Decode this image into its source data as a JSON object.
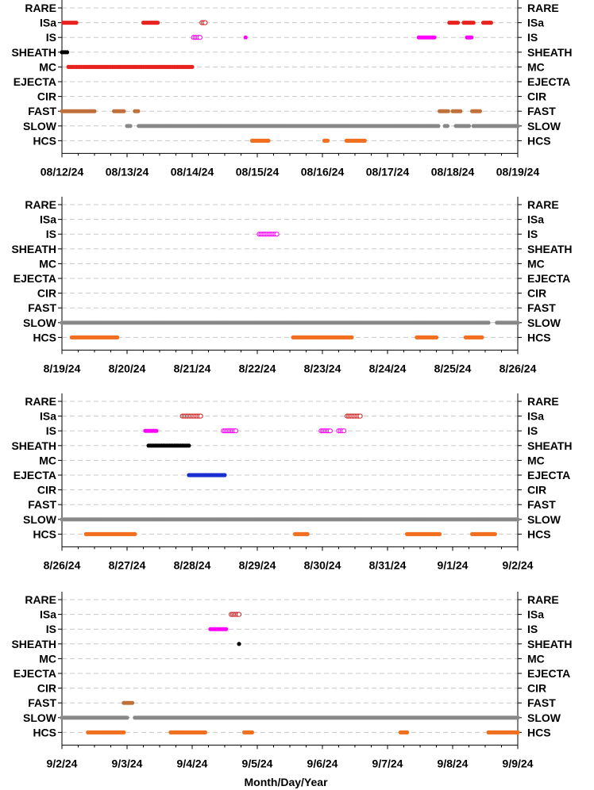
{
  "x_axis_title": "Month/Day/Year",
  "chart_data": [
    {
      "type": "scatter",
      "categories": [
        "RARE",
        "ISa",
        "IS",
        "SHEATH",
        "MC",
        "EJECTA",
        "CIR",
        "FAST",
        "SLOW",
        "HCS"
      ],
      "xlim": [
        "08/12/24",
        "08/19/24"
      ],
      "tick_labels": [
        "08/12/24",
        "08/13/24",
        "08/14/24",
        "08/15/24",
        "08/16/24",
        "08/17/24",
        "08/18/24",
        "08/19/24"
      ],
      "grid": true,
      "series": [
        {
          "category": "ISa",
          "style": "filled",
          "color": "#e8231f",
          "intervals": [
            [
              0.02,
              0.22
            ],
            [
              1.25,
              1.47
            ],
            [
              5.95,
              6.08
            ],
            [
              6.17,
              6.32
            ],
            [
              6.47,
              6.59
            ]
          ]
        },
        {
          "category": "ISa",
          "style": "open",
          "color": "#cc1f1f",
          "intervals": [
            [
              2.15,
              2.2
            ]
          ]
        },
        {
          "category": "IS",
          "style": "open",
          "color": "#ff00ff",
          "intervals": [
            [
              2.02,
              2.12
            ]
          ]
        },
        {
          "category": "IS",
          "style": "filled",
          "color": "#ff00ff",
          "intervals": [
            [
              2.82,
              2.82
            ],
            [
              5.48,
              5.72
            ],
            [
              6.22,
              6.29
            ]
          ]
        },
        {
          "category": "SHEATH",
          "style": "filled",
          "color": "#000000",
          "intervals": [
            [
              0.0,
              0.08
            ]
          ]
        },
        {
          "category": "MC",
          "style": "filled",
          "color": "#e8231f",
          "intervals": [
            [
              0.1,
              2.0
            ]
          ]
        },
        {
          "category": "FAST",
          "style": "filled",
          "color": "#c0703a",
          "intervals": [
            [
              0.0,
              0.5
            ],
            [
              0.8,
              0.95
            ],
            [
              1.12,
              1.17
            ],
            [
              5.8,
              5.93
            ],
            [
              6.0,
              6.12
            ],
            [
              6.3,
              6.42
            ]
          ]
        },
        {
          "category": "SLOW",
          "style": "filled",
          "color": "#888888",
          "intervals": [
            [
              1.0,
              1.05
            ],
            [
              1.18,
              5.78
            ],
            [
              5.88,
              5.92
            ],
            [
              6.05,
              6.25
            ],
            [
              6.32,
              7.0
            ]
          ]
        },
        {
          "category": "HCS",
          "style": "filled",
          "color": "#f07020",
          "intervals": [
            [
              2.92,
              3.17
            ],
            [
              4.03,
              4.08
            ],
            [
              4.37,
              4.65
            ]
          ]
        }
      ]
    },
    {
      "type": "scatter",
      "categories": [
        "RARE",
        "ISa",
        "IS",
        "SHEATH",
        "MC",
        "EJECTA",
        "CIR",
        "FAST",
        "SLOW",
        "HCS"
      ],
      "xlim": [
        "8/19/24",
        "8/26/24"
      ],
      "tick_labels": [
        "8/19/24",
        "8/20/24",
        "8/21/24",
        "8/22/24",
        "8/23/24",
        "8/24/24",
        "8/25/24",
        "8/26/24"
      ],
      "grid": true,
      "series": [
        {
          "category": "IS",
          "style": "open",
          "color": "#ff00ff",
          "intervals": [
            [
              3.03,
              3.3
            ]
          ]
        },
        {
          "category": "SLOW",
          "style": "filled",
          "color": "#888888",
          "intervals": [
            [
              0.0,
              6.55
            ],
            [
              6.68,
              7.0
            ]
          ]
        },
        {
          "category": "HCS",
          "style": "filled",
          "color": "#f07020",
          "intervals": [
            [
              0.15,
              0.85
            ],
            [
              3.55,
              4.45
            ],
            [
              5.45,
              5.75
            ],
            [
              6.2,
              6.45
            ]
          ]
        }
      ]
    },
    {
      "type": "scatter",
      "categories": [
        "RARE",
        "ISa",
        "IS",
        "SHEATH",
        "MC",
        "EJECTA",
        "CIR",
        "FAST",
        "SLOW",
        "HCS"
      ],
      "xlim": [
        "8/26/24",
        "9/2/24"
      ],
      "tick_labels": [
        "8/26/24",
        "8/27/24",
        "8/28/24",
        "8/29/24",
        "8/30/24",
        "8/31/24",
        "9/1/24",
        "9/2/24"
      ],
      "grid": true,
      "series": [
        {
          "category": "ISa",
          "style": "open",
          "color": "#cc1f1f",
          "intervals": [
            [
              1.85,
              2.13
            ],
            [
              4.38,
              4.58
            ]
          ]
        },
        {
          "category": "IS",
          "style": "filled",
          "color": "#ff00ff",
          "intervals": [
            [
              1.28,
              1.45
            ]
          ]
        },
        {
          "category": "IS",
          "style": "open",
          "color": "#ff00ff",
          "intervals": [
            [
              2.48,
              2.67
            ],
            [
              3.98,
              4.12
            ],
            [
              4.25,
              4.33
            ]
          ]
        },
        {
          "category": "SHEATH",
          "style": "filled",
          "color": "#000000",
          "intervals": [
            [
              1.33,
              1.95
            ]
          ]
        },
        {
          "category": "EJECTA",
          "style": "filled",
          "color": "#1a2fd0",
          "intervals": [
            [
              1.95,
              2.5
            ]
          ]
        },
        {
          "category": "SLOW",
          "style": "filled",
          "color": "#888888",
          "intervals": [
            [
              0.0,
              7.0
            ]
          ]
        },
        {
          "category": "HCS",
          "style": "filled",
          "color": "#f07020",
          "intervals": [
            [
              0.37,
              1.12
            ],
            [
              3.58,
              3.77
            ],
            [
              5.3,
              5.8
            ],
            [
              6.3,
              6.65
            ]
          ]
        }
      ]
    },
    {
      "type": "scatter",
      "categories": [
        "RARE",
        "ISa",
        "IS",
        "SHEATH",
        "MC",
        "EJECTA",
        "CIR",
        "FAST",
        "SLOW",
        "HCS"
      ],
      "xlim": [
        "9/2/24",
        "9/9/24"
      ],
      "tick_labels": [
        "9/2/24",
        "9/3/24",
        "9/4/24",
        "9/5/24",
        "9/6/24",
        "9/7/24",
        "9/8/24",
        "9/9/24"
      ],
      "grid": true,
      "series": [
        {
          "category": "ISa",
          "style": "open",
          "color": "#cc1f1f",
          "intervals": [
            [
              2.6,
              2.72
            ]
          ]
        },
        {
          "category": "IS",
          "style": "filled",
          "color": "#ff00ff",
          "intervals": [
            [
              2.28,
              2.52
            ]
          ]
        },
        {
          "category": "SHEATH",
          "style": "filled",
          "color": "#000000",
          "intervals": [
            [
              2.72,
              2.72
            ]
          ]
        },
        {
          "category": "FAST",
          "style": "filled",
          "color": "#c0703a",
          "intervals": [
            [
              0.95,
              1.08
            ]
          ]
        },
        {
          "category": "SLOW",
          "style": "filled",
          "color": "#888888",
          "intervals": [
            [
              0.0,
              1.0
            ],
            [
              1.12,
              7.0
            ]
          ]
        },
        {
          "category": "HCS",
          "style": "filled",
          "color": "#f07020",
          "intervals": [
            [
              0.4,
              0.95
            ],
            [
              1.67,
              2.2
            ],
            [
              2.8,
              2.92
            ],
            [
              5.2,
              5.3
            ],
            [
              6.55,
              7.0
            ]
          ]
        }
      ]
    }
  ]
}
